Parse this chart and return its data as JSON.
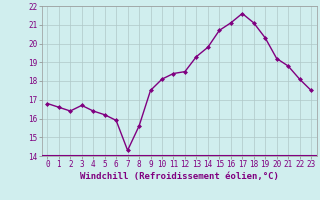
{
  "x": [
    0,
    1,
    2,
    3,
    4,
    5,
    6,
    7,
    8,
    9,
    10,
    11,
    12,
    13,
    14,
    15,
    16,
    17,
    18,
    19,
    20,
    21,
    22,
    23
  ],
  "y": [
    16.8,
    16.6,
    16.4,
    16.7,
    16.4,
    16.2,
    15.9,
    14.3,
    15.6,
    17.5,
    18.1,
    18.4,
    18.5,
    19.3,
    19.8,
    20.7,
    21.1,
    21.6,
    21.1,
    20.3,
    19.2,
    18.8,
    18.1,
    17.5
  ],
  "line_color": "#800080",
  "marker": "D",
  "marker_size": 2,
  "bg_color": "#d0eeee",
  "grid_color": "#b0c8c8",
  "xlabel": "Windchill (Refroidissement éolien,°C)",
  "ylim": [
    14,
    22
  ],
  "xlim_left": -0.5,
  "xlim_right": 23.5,
  "yticks": [
    14,
    15,
    16,
    17,
    18,
    19,
    20,
    21,
    22
  ],
  "xticks": [
    0,
    1,
    2,
    3,
    4,
    5,
    6,
    7,
    8,
    9,
    10,
    11,
    12,
    13,
    14,
    15,
    16,
    17,
    18,
    19,
    20,
    21,
    22,
    23
  ],
  "xlabel_color": "#800080",
  "tick_color": "#800080",
  "axis_label_fontsize": 6.5,
  "tick_fontsize": 5.5,
  "linewidth": 1.0
}
